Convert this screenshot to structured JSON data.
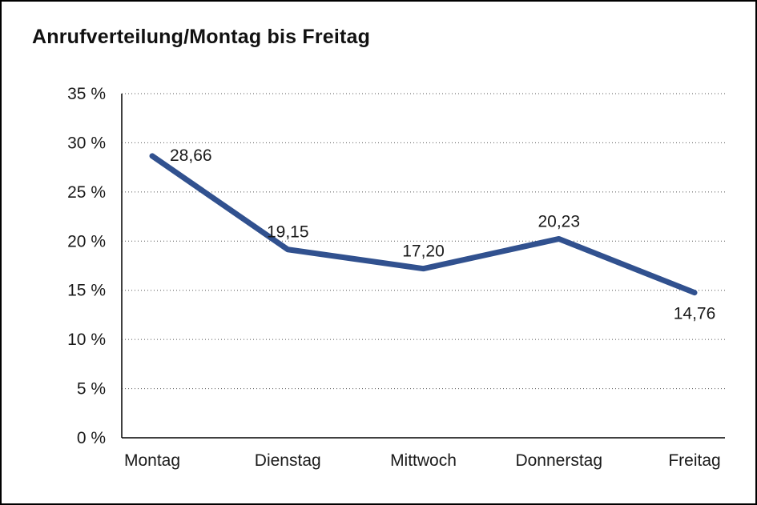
{
  "chart_data": {
    "type": "line",
    "title": "Anrufverteilung/Montag bis Freitag",
    "categories": [
      "Montag",
      "Dienstag",
      "Mittwoch",
      "Donnerstag",
      "Freitag"
    ],
    "values": [
      28.66,
      19.15,
      17.2,
      20.23,
      14.76
    ],
    "value_labels": [
      "28,66",
      "19,15",
      "17,20",
      "20,23",
      "14,76"
    ],
    "label_positions": [
      "right",
      "above",
      "above",
      "above",
      "below"
    ],
    "ylim": [
      0,
      35
    ],
    "yticks": [
      0,
      5,
      10,
      15,
      20,
      25,
      30,
      35
    ],
    "ytick_labels": [
      "0 %",
      "5 %",
      "10 %",
      "15 %",
      "20 %",
      "25 %",
      "30 %",
      "35 %"
    ],
    "xlabel": "",
    "ylabel": "",
    "grid": "dotted-horizontal",
    "legend": "none",
    "line_color": "#31518F",
    "text_color": "#1a1a1a"
  }
}
